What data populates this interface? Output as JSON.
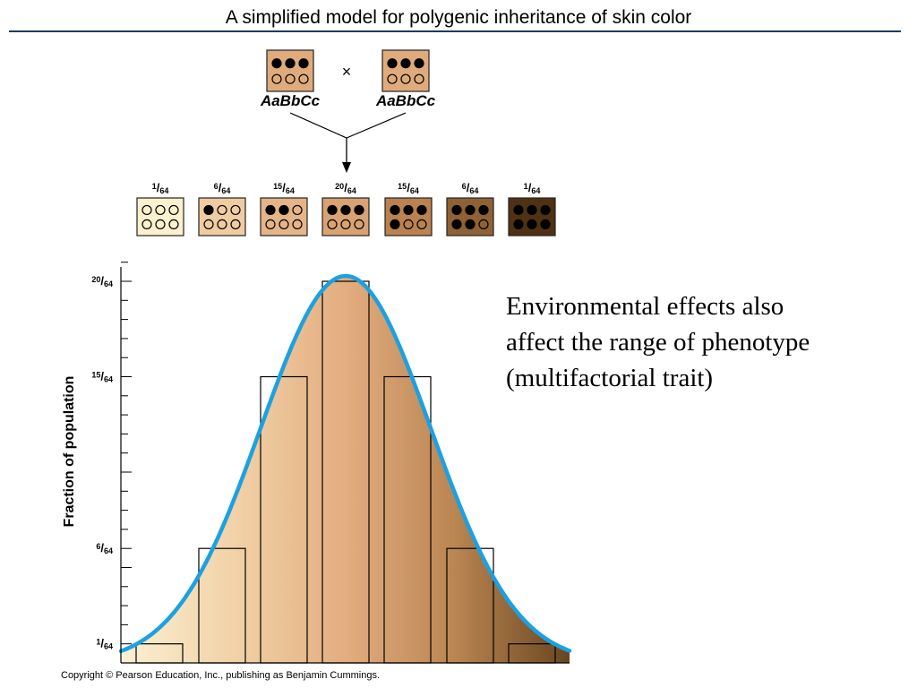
{
  "slide": {
    "title": "A simplified model for polygenic inheritance of skin color",
    "side_text": [
      "Environmental effects also",
      "affect the range of phenotype",
      "(multifactorial trait)"
    ],
    "copyright": "Copyright © Pearson Education, Inc., publishing as Benjamin Cummings."
  },
  "cross": {
    "parent_genotype": "AaBbCc",
    "cross_symbol": "×",
    "parent_dots": [
      1,
      1,
      1,
      0,
      0,
      0
    ],
    "parent_color": "#e0ab7c"
  },
  "offspring": [
    {
      "num": "1",
      "den": "64",
      "dark": 0,
      "color": "#fbf1cf"
    },
    {
      "num": "6",
      "den": "64",
      "dark": 1,
      "color": "#f0ccA2"
    },
    {
      "num": "15",
      "den": "64",
      "dark": 2,
      "color": "#e5b488"
    },
    {
      "num": "20",
      "den": "64",
      "dark": 3,
      "color": "#d9a273"
    },
    {
      "num": "15",
      "den": "64",
      "dark": 4,
      "color": "#b98250"
    },
    {
      "num": "6",
      "den": "64",
      "dark": 5,
      "color": "#8e6235"
    },
    {
      "num": "1",
      "den": "64",
      "dark": 6,
      "color": "#4e3213"
    }
  ],
  "chart_data": {
    "type": "bar",
    "categories": [
      "0",
      "1",
      "2",
      "3",
      "4",
      "5",
      "6"
    ],
    "values": [
      1,
      6,
      15,
      20,
      15,
      6,
      1
    ],
    "value_denominator": 64,
    "ylabel": "Fraction of population",
    "xlabel": "",
    "ylim": [
      0,
      20
    ],
    "ytick_labels": [
      {
        "value": 1,
        "num": "1",
        "den": "64"
      },
      {
        "value": 6,
        "num": "6",
        "den": "64"
      },
      {
        "value": 15,
        "num": "15",
        "den": "64"
      },
      {
        "value": 20,
        "num": "20",
        "den": "64"
      }
    ],
    "minor_tick_step": 1,
    "curve_color": "#1ba1e2",
    "gradient_colors": [
      "#fbf0d2",
      "#f2d2a8",
      "#e3ad80",
      "#b88450",
      "#6a4520"
    ],
    "grid": false
  }
}
